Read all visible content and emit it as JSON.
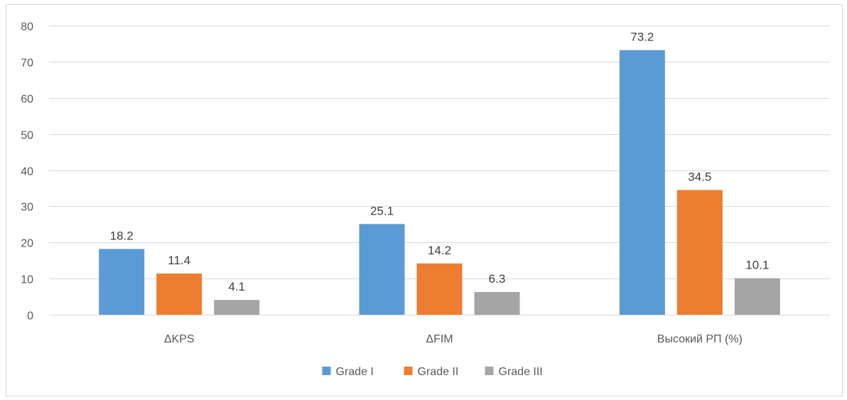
{
  "chart_data": {
    "type": "bar",
    "categories": [
      "ΔKPS",
      "ΔFIM",
      "Высокий РП (%)"
    ],
    "series": [
      {
        "name": "Grade I",
        "color": "#5b9bd5",
        "values": [
          18.2,
          25.1,
          73.2
        ]
      },
      {
        "name": "Grade II",
        "color": "#ed7d31",
        "values": [
          11.4,
          14.2,
          34.5
        ]
      },
      {
        "name": "Grade III",
        "color": "#a5a5a5",
        "values": [
          4.1,
          6.3,
          10.1
        ]
      }
    ],
    "ylim": [
      0,
      80
    ],
    "yticks": [
      0,
      10,
      20,
      30,
      40,
      50,
      60,
      70,
      80
    ],
    "grid": true,
    "legend": "bottom-center"
  }
}
